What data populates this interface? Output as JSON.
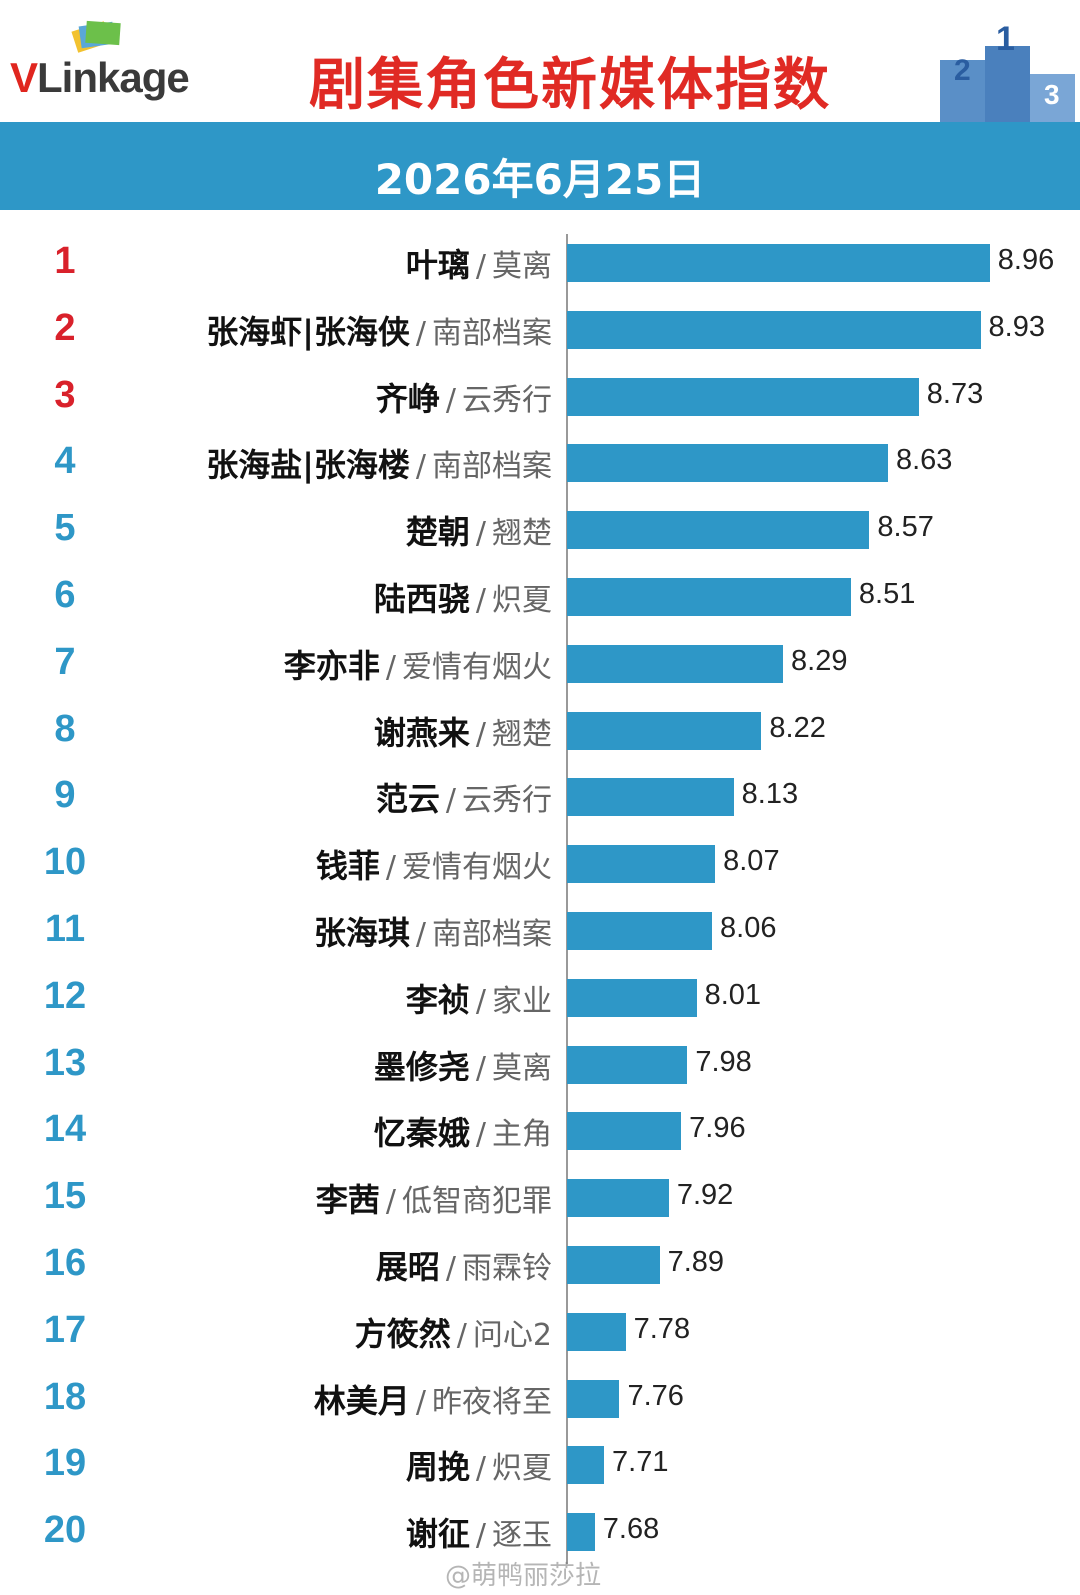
{
  "header": {
    "logo_v": "V",
    "logo_rest": "Linkage",
    "title": "剧集角色新媒体指数",
    "date": "2026年6月25日"
  },
  "watermark": "@萌鸭丽莎拉",
  "chart_data": {
    "type": "bar",
    "orientation": "horizontal",
    "title": "剧集角色新媒体指数",
    "subtitle": "2026年6月25日",
    "grid": false,
    "rows": [
      {
        "rank": "1",
        "name": "叶璃",
        "drama": "莫离",
        "value": 8.96
      },
      {
        "rank": "2",
        "name": "张海虾|张海侠",
        "drama": "南部档案",
        "value": 8.93
      },
      {
        "rank": "3",
        "name": "齐峥",
        "drama": "云秀行",
        "value": 8.73
      },
      {
        "rank": "4",
        "name": "张海盐|张海楼",
        "drama": "南部档案",
        "value": 8.63
      },
      {
        "rank": "5",
        "name": "楚朝",
        "drama": "翘楚",
        "value": 8.57
      },
      {
        "rank": "6",
        "name": "陆西骁",
        "drama": "炽夏",
        "value": 8.51
      },
      {
        "rank": "7",
        "name": "李亦非",
        "drama": "爱情有烟火",
        "value": 8.29
      },
      {
        "rank": "8",
        "name": "谢燕来",
        "drama": "翘楚",
        "value": 8.22
      },
      {
        "rank": "9",
        "name": "范云",
        "drama": "云秀行",
        "value": 8.13
      },
      {
        "rank": "10",
        "name": "钱菲",
        "drama": "爱情有烟火",
        "value": 8.07
      },
      {
        "rank": "11",
        "name": "张海琪",
        "drama": "南部档案",
        "value": 8.06
      },
      {
        "rank": "12",
        "name": "李祯",
        "drama": "家业",
        "value": 8.01
      },
      {
        "rank": "13",
        "name": "墨修尧",
        "drama": "莫离",
        "value": 7.98
      },
      {
        "rank": "14",
        "name": "忆秦娥",
        "drama": "主角",
        "value": 7.96
      },
      {
        "rank": "15",
        "name": "李茜",
        "drama": "低智商犯罪",
        "value": 7.92
      },
      {
        "rank": "16",
        "name": "展昭",
        "drama": "雨霖铃",
        "value": 7.89
      },
      {
        "rank": "17",
        "name": "方筱然",
        "drama": "问心2",
        "value": 7.78
      },
      {
        "rank": "18",
        "name": "林美月",
        "drama": "昨夜将至",
        "value": 7.76
      },
      {
        "rank": "19",
        "name": "周挽",
        "drama": "炽夏",
        "value": 7.71
      },
      {
        "rank": "20",
        "name": "谢征",
        "drama": "逐玉",
        "value": 7.68
      }
    ],
    "top_rank_color": "#d9212b",
    "rank_color": "#2e97c7",
    "bar_color": "#2e97c7"
  }
}
